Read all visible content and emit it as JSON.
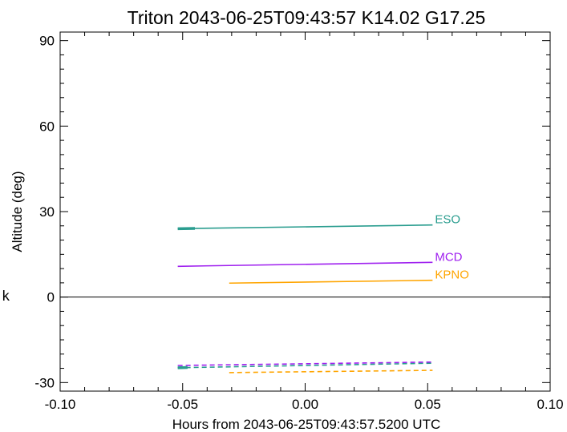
{
  "chart_data": {
    "type": "line",
    "title": "Triton 2043-06-25T09:43:57  K14.02  G17.25",
    "xlabel": "Hours from 2043-06-25T09:43:57.5200 UTC",
    "ylabel": "Altitude (deg)",
    "xlim": [
      -0.1,
      0.1
    ],
    "ylim": [
      -33,
      93
    ],
    "xticks": [
      -0.1,
      -0.05,
      0.0,
      0.05,
      0.1
    ],
    "xtick_labels": [
      "-0.10",
      "-0.05",
      "0.00",
      "0.05",
      "0.10"
    ],
    "yticks": [
      -30,
      0,
      30,
      60,
      90
    ],
    "ytick_labels": [
      "-30",
      "0",
      "30",
      "60",
      "90"
    ],
    "grid": false,
    "zero_line": true,
    "side_label": "k",
    "series": [
      {
        "name": "ESO",
        "color": "#2a9d8f",
        "style": "solid",
        "x": [
          -0.052,
          0.052
        ],
        "y": [
          24.0,
          25.3
        ]
      },
      {
        "name": "MCD",
        "color": "#9f20ef",
        "style": "solid",
        "x": [
          -0.052,
          0.052
        ],
        "y": [
          10.8,
          12.2
        ]
      },
      {
        "name": "KPNO",
        "color": "#ffa500",
        "style": "solid",
        "x": [
          -0.031,
          0.052
        ],
        "y": [
          4.9,
          5.9
        ]
      },
      {
        "name": "ESO",
        "color": "#2a9d8f",
        "style": "dashed",
        "x": [
          -0.052,
          0.052
        ],
        "y": [
          -24.8,
          -23.2
        ]
      },
      {
        "name": "MCD",
        "color": "#9f20ef",
        "style": "dashed",
        "x": [
          -0.052,
          0.052
        ],
        "y": [
          -24.0,
          -22.8
        ]
      },
      {
        "name": "KPNO",
        "color": "#ffa500",
        "style": "dashed",
        "x": [
          -0.031,
          0.052
        ],
        "y": [
          -26.5,
          -25.7
        ]
      }
    ],
    "markers": [
      {
        "series": "ESO",
        "color": "#2a9d8f",
        "x": [
          -0.052,
          -0.045
        ],
        "y": [
          24.0,
          24.1
        ]
      },
      {
        "series": "ESO",
        "color": "#2a9d8f",
        "x": [
          -0.052,
          -0.048
        ],
        "y": [
          -24.8,
          -24.7
        ]
      }
    ]
  }
}
